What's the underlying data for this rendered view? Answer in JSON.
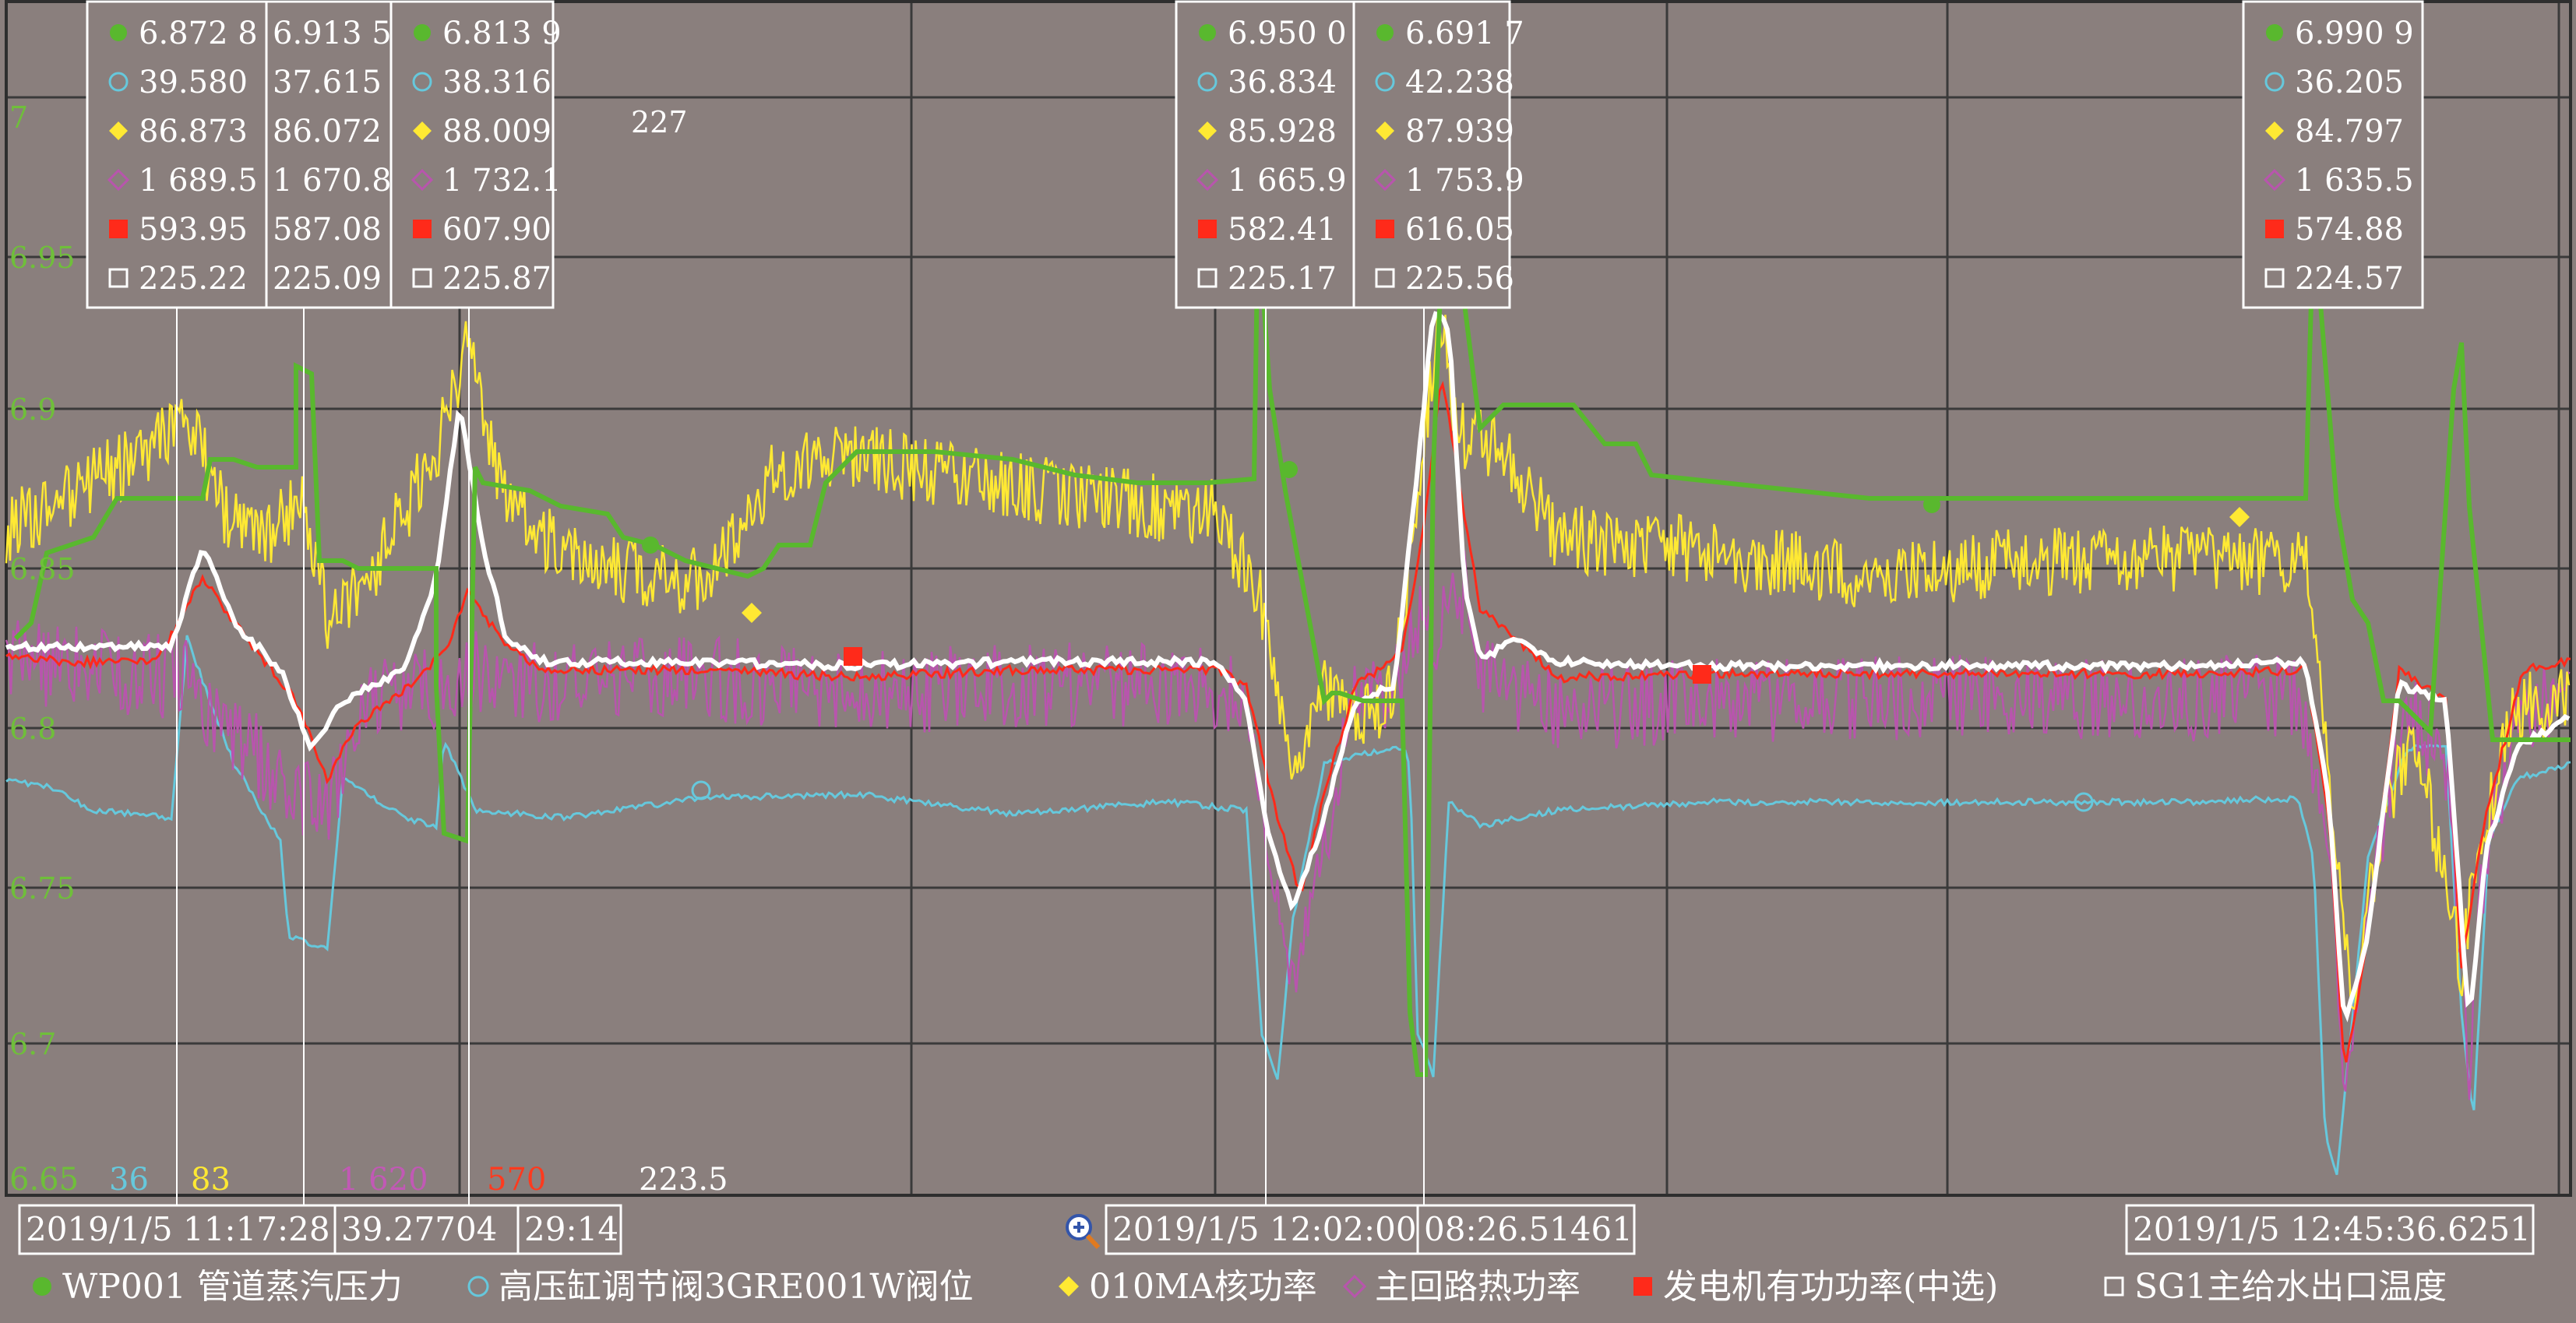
{
  "chart_data": {
    "type": "line",
    "y_primary": {
      "ticks": [
        "7",
        "6.95",
        "6.9",
        "6.85",
        "6.8",
        "6.75",
        "6.7"
      ],
      "min_label": "6.65",
      "range": [
        6.65,
        7.0
      ],
      "color": "#6fbf3a"
    },
    "scale_min_labels": [
      {
        "series": "blue",
        "text": "36",
        "color": "#66c8dc"
      },
      {
        "series": "yellow",
        "text": "83",
        "color": "#ffe933"
      },
      {
        "series": "purple",
        "text": "1 620",
        "color": "#c159b5"
      },
      {
        "series": "red",
        "text": "570",
        "color": "#ff3a1e"
      },
      {
        "series": "white",
        "text": "223.5",
        "color": "#ffffff"
      }
    ],
    "top_white_value": "227",
    "grid": true,
    "legend_position": "bottom",
    "series": [
      {
        "name": "WP001 管道蒸汽压力",
        "color": "#59b82e",
        "marker": "circle",
        "ylim": [
          6.65,
          7.0
        ]
      },
      {
        "name": "高压缸调节阀3GRE001W阀位",
        "color": "#66c8dc",
        "marker": "circle-open",
        "ylim": [
          36,
          43
        ]
      },
      {
        "name": "010MA核功率",
        "color": "#ffe933",
        "marker": "diamond",
        "ylim": [
          83,
          89.5
        ]
      },
      {
        "name": "主回路热功率",
        "color": "#b855ad",
        "marker": "diamond-open",
        "ylim": [
          1620,
          1770
        ]
      },
      {
        "name": "发电机有功功率(中选)",
        "color": "#ff2a1a",
        "marker": "square",
        "ylim": [
          570,
          620
        ]
      },
      {
        "name": "SG1主给水出口温度",
        "color": "#ffffff",
        "marker": "square-open",
        "ylim": [
          223.5,
          227
        ]
      }
    ],
    "cursor_readouts": [
      {
        "values": [
          "6.872 8",
          "39.580",
          "86.873",
          "1 689.5",
          "593.95",
          "225.22"
        ]
      },
      {
        "values": [
          "6.913 5",
          "37.615",
          "86.072",
          "1 670.8",
          "587.08",
          "225.09"
        ]
      },
      {
        "values": [
          "6.813 9",
          "38.316",
          "88.009",
          "1 732.1",
          "607.90",
          "225.87"
        ]
      },
      {
        "values": [
          "6.950 0",
          "36.834",
          "85.928",
          "1 665.9",
          "582.41",
          "225.17"
        ]
      },
      {
        "values": [
          "6.691 7",
          "42.238",
          "87.939",
          "1 753.9",
          "616.05",
          "225.56"
        ]
      },
      {
        "values": [
          "6.990 9",
          "36.205",
          "84.797",
          "1 635.5",
          "574.88",
          "224.57"
        ]
      }
    ],
    "time_boxes": [
      "2019/1/5 11:17:28",
      "39.27704",
      "29:14",
      "2019/1/5 12:02:00",
      "08:26.51461",
      "2019/1/5 12:45:36.6251"
    ]
  },
  "ui": {
    "zoom_icon": "zoom-in-icon"
  }
}
